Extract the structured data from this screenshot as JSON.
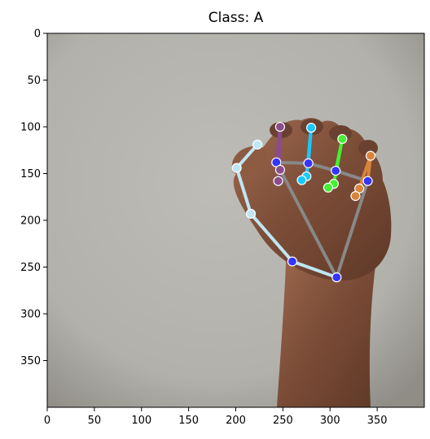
{
  "title": "Class: A",
  "image": {
    "width": 400,
    "height": 400,
    "x_ticks": [
      0,
      50,
      100,
      150,
      200,
      250,
      300,
      350
    ],
    "y_ticks": [
      0,
      50,
      100,
      150,
      200,
      250,
      300,
      350
    ],
    "background_color": "#b4b3ad",
    "skin_color": "#7a4f39"
  },
  "landmarks": [
    {
      "id": 0,
      "x": 307,
      "y": 261,
      "color": "#3535ff"
    },
    {
      "id": 1,
      "x": 260,
      "y": 244,
      "color": "#3535ff"
    },
    {
      "id": 2,
      "x": 216,
      "y": 193,
      "color": "#bfe6f5"
    },
    {
      "id": 3,
      "x": 201,
      "y": 144,
      "color": "#bfe6f5"
    },
    {
      "id": 4,
      "x": 223,
      "y": 119,
      "color": "#bfe6f5"
    },
    {
      "id": 5,
      "x": 243,
      "y": 138,
      "color": "#3535ff"
    },
    {
      "id": 6,
      "x": 247,
      "y": 100,
      "color": "#8b4c8c"
    },
    {
      "id": 7,
      "x": 247,
      "y": 146,
      "color": "#8b4c8c"
    },
    {
      "id": 8,
      "x": 245,
      "y": 158,
      "color": "#8b4c8c"
    },
    {
      "id": 9,
      "x": 277,
      "y": 139,
      "color": "#3535ff"
    },
    {
      "id": 10,
      "x": 280,
      "y": 101,
      "color": "#19c8ff"
    },
    {
      "id": 11,
      "x": 275,
      "y": 153,
      "color": "#19c8ff"
    },
    {
      "id": 12,
      "x": 270,
      "y": 157,
      "color": "#19c8ff"
    },
    {
      "id": 13,
      "x": 306,
      "y": 147,
      "color": "#3535ff"
    },
    {
      "id": 14,
      "x": 313,
      "y": 113,
      "color": "#43f033"
    },
    {
      "id": 15,
      "x": 304,
      "y": 161,
      "color": "#43f033"
    },
    {
      "id": 16,
      "x": 298,
      "y": 165,
      "color": "#43f033"
    },
    {
      "id": 17,
      "x": 340,
      "y": 158,
      "color": "#3535ff"
    },
    {
      "id": 18,
      "x": 343,
      "y": 131,
      "color": "#d8843a"
    },
    {
      "id": 19,
      "x": 331,
      "y": 166,
      "color": "#d8843a"
    },
    {
      "id": 20,
      "x": 327,
      "y": 174,
      "color": "#d8843a"
    }
  ],
  "connections": [
    {
      "from": 0,
      "to": 1,
      "color": "#bfe6f5"
    },
    {
      "from": 1,
      "to": 2,
      "color": "#bfe6f5"
    },
    {
      "from": 2,
      "to": 3,
      "color": "#bfe6f5"
    },
    {
      "from": 3,
      "to": 4,
      "color": "#bfe6f5"
    },
    {
      "from": 0,
      "to": 5,
      "color": "#888888"
    },
    {
      "from": 5,
      "to": 9,
      "color": "#888888"
    },
    {
      "from": 9,
      "to": 13,
      "color": "#888888"
    },
    {
      "from": 13,
      "to": 17,
      "color": "#888888"
    },
    {
      "from": 0,
      "to": 17,
      "color": "#888888"
    },
    {
      "from": 5,
      "to": 6,
      "color": "#8b4c8c"
    },
    {
      "from": 6,
      "to": 7,
      "color": "#8b4c8c"
    },
    {
      "from": 7,
      "to": 8,
      "color": "#8b4c8c"
    },
    {
      "from": 9,
      "to": 10,
      "color": "#19c8ff"
    },
    {
      "from": 10,
      "to": 11,
      "color": "#19c8ff"
    },
    {
      "from": 11,
      "to": 12,
      "color": "#19c8ff"
    },
    {
      "from": 13,
      "to": 14,
      "color": "#43f033"
    },
    {
      "from": 14,
      "to": 15,
      "color": "#43f033"
    },
    {
      "from": 15,
      "to": 16,
      "color": "#43f033"
    },
    {
      "from": 17,
      "to": 18,
      "color": "#d8843a"
    },
    {
      "from": 18,
      "to": 19,
      "color": "#d8843a"
    },
    {
      "from": 19,
      "to": 20,
      "color": "#d8843a"
    }
  ]
}
